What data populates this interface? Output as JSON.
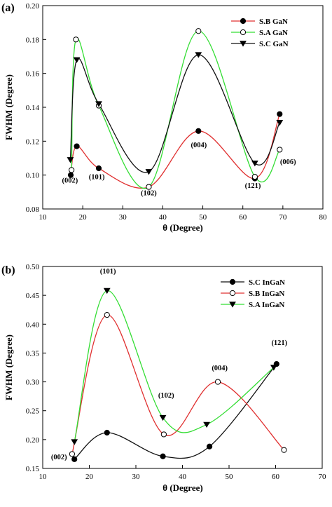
{
  "chart_data": [
    {
      "type": "line",
      "panel_label": "(a)",
      "xlabel": "θ (Degree)",
      "ylabel": "FWHM (Degree)",
      "xlim": [
        10,
        80
      ],
      "ylim": [
        0.08,
        0.2
      ],
      "xticks": [
        10,
        20,
        30,
        40,
        50,
        60,
        70,
        80
      ],
      "yticks": [
        0.08,
        0.1,
        0.12,
        0.14,
        0.16,
        0.18,
        0.2
      ],
      "ytick_decimals": 2,
      "grid": false,
      "legend_position": "top-right",
      "series": [
        {
          "name": "S.B GaN",
          "color": "#e03030",
          "marker": "filled-circle",
          "points": [
            [
              17.0,
              0.1
            ],
            [
              18.5,
              0.117
            ],
            [
              24.0,
              0.104
            ],
            [
              36.5,
              0.093
            ],
            [
              48.9,
              0.126
            ],
            [
              63.0,
              0.098
            ],
            [
              69.2,
              0.136
            ]
          ]
        },
        {
          "name": "S.A GaN",
          "color": "#33dd33",
          "marker": "open-circle",
          "points": [
            [
              17.2,
              0.103
            ],
            [
              18.3,
              0.18
            ],
            [
              24.0,
              0.141
            ],
            [
              36.5,
              0.093
            ],
            [
              48.9,
              0.185
            ],
            [
              63.0,
              0.099
            ],
            [
              69.2,
              0.115
            ]
          ]
        },
        {
          "name": "S.C GaN",
          "color": "#111111",
          "marker": "triangle-down",
          "points": [
            [
              16.9,
              0.109
            ],
            [
              18.5,
              0.168
            ],
            [
              24.0,
              0.142
            ],
            [
              36.5,
              0.102
            ],
            [
              48.9,
              0.171
            ],
            [
              63.0,
              0.107
            ],
            [
              69.2,
              0.131
            ]
          ]
        }
      ],
      "annotations": [
        {
          "text": "(002)",
          "x": 16.8,
          "y": 0.0955
        },
        {
          "text": "(101)",
          "x": 23.5,
          "y": 0.0975
        },
        {
          "text": "(102)",
          "x": 36.5,
          "y": 0.088
        },
        {
          "text": "(004)",
          "x": 49.0,
          "y": 0.1165
        },
        {
          "text": "(121)",
          "x": 62.5,
          "y": 0.0925
        },
        {
          "text": "(006)",
          "x": 71.3,
          "y": 0.1065
        }
      ]
    },
    {
      "type": "line",
      "panel_label": "(b)",
      "xlabel": "θ (Degree)",
      "ylabel": "FWHM (Degree)",
      "xlim": [
        10,
        70
      ],
      "ylim": [
        0.15,
        0.5
      ],
      "xticks": [
        10,
        20,
        30,
        40,
        50,
        60,
        70
      ],
      "yticks": [
        0.15,
        0.2,
        0.25,
        0.3,
        0.35,
        0.4,
        0.45,
        0.5
      ],
      "ytick_decimals": 2,
      "grid": false,
      "legend_position": "top-right",
      "series": [
        {
          "name": "S.C InGaN",
          "color": "#111111",
          "marker": "filled-circle",
          "points": [
            [
              16.8,
              0.166
            ],
            [
              23.8,
              0.212
            ],
            [
              35.8,
              0.171
            ],
            [
              45.8,
              0.188
            ],
            [
              60.2,
              0.331
            ]
          ]
        },
        {
          "name": "S.B InGaN",
          "color": "#e03030",
          "marker": "open-circle",
          "points": [
            [
              16.3,
              0.175
            ],
            [
              23.8,
              0.416
            ],
            [
              36.0,
              0.209
            ],
            [
              47.6,
              0.3
            ],
            [
              61.8,
              0.182
            ]
          ]
        },
        {
          "name": "S.A InGaN",
          "color": "#33dd33",
          "marker": "triangle-down",
          "points": [
            [
              16.8,
              0.196
            ],
            [
              23.8,
              0.458
            ],
            [
              35.8,
              0.238
            ],
            [
              45.2,
              0.226
            ],
            [
              59.6,
              0.325
            ]
          ]
        }
      ],
      "annotations": [
        {
          "text": "(002)",
          "x": 13.5,
          "y": 0.166
        },
        {
          "text": "(101)",
          "x": 24.0,
          "y": 0.488
        },
        {
          "text": "(102)",
          "x": 36.5,
          "y": 0.273
        },
        {
          "text": "(004)",
          "x": 48.0,
          "y": 0.32
        },
        {
          "text": "(121)",
          "x": 60.8,
          "y": 0.364
        }
      ]
    }
  ]
}
